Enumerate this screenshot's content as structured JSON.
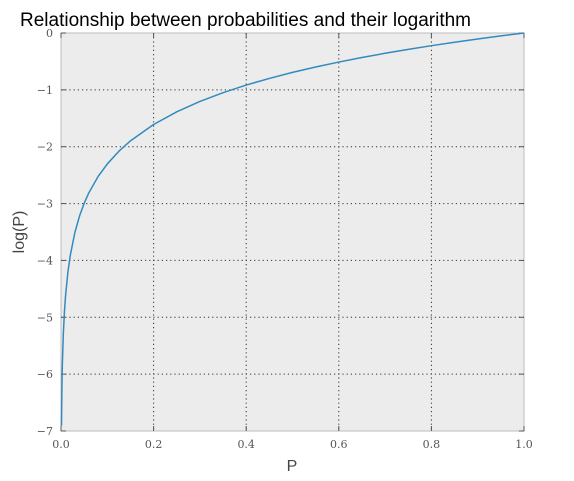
{
  "chart_data": {
    "type": "line",
    "title": "Relationship between probabilities and their logarithm",
    "xlabel": "P",
    "ylabel": "log(P)",
    "xlim": [
      0.0,
      1.0
    ],
    "ylim": [
      -7,
      0
    ],
    "grid": true,
    "x_ticks": [
      0.0,
      0.2,
      0.4,
      0.6,
      0.8,
      1.0
    ],
    "x_tick_labels": [
      "0.0",
      "0.2",
      "0.4",
      "0.6",
      "0.8",
      "1.0"
    ],
    "y_ticks": [
      0,
      -1,
      -2,
      -3,
      -4,
      -5,
      -6,
      -7
    ],
    "y_tick_labels": [
      "0",
      "−1",
      "−2",
      "−3",
      "−4",
      "−5",
      "−6",
      "−7"
    ],
    "series": [
      {
        "color": "#348abd",
        "x": [
          0.001,
          0.002,
          0.003,
          0.005,
          0.0075,
          0.01,
          0.015,
          0.02,
          0.03,
          0.04,
          0.05,
          0.06,
          0.08,
          0.1,
          0.125,
          0.15,
          0.2,
          0.25,
          0.3,
          0.35,
          0.4,
          0.45,
          0.5,
          0.55,
          0.6,
          0.65,
          0.7,
          0.75,
          0.8,
          0.85,
          0.9,
          0.95,
          1.0
        ],
        "y": [
          -6.908,
          -6.215,
          -5.809,
          -5.298,
          -4.893,
          -4.605,
          -4.2,
          -3.912,
          -3.507,
          -3.219,
          -2.996,
          -2.813,
          -2.526,
          -2.303,
          -2.079,
          -1.897,
          -1.609,
          -1.386,
          -1.204,
          -1.05,
          -0.916,
          -0.799,
          -0.693,
          -0.598,
          -0.511,
          -0.431,
          -0.357,
          -0.288,
          -0.223,
          -0.163,
          -0.105,
          -0.051,
          0.0
        ]
      }
    ]
  }
}
